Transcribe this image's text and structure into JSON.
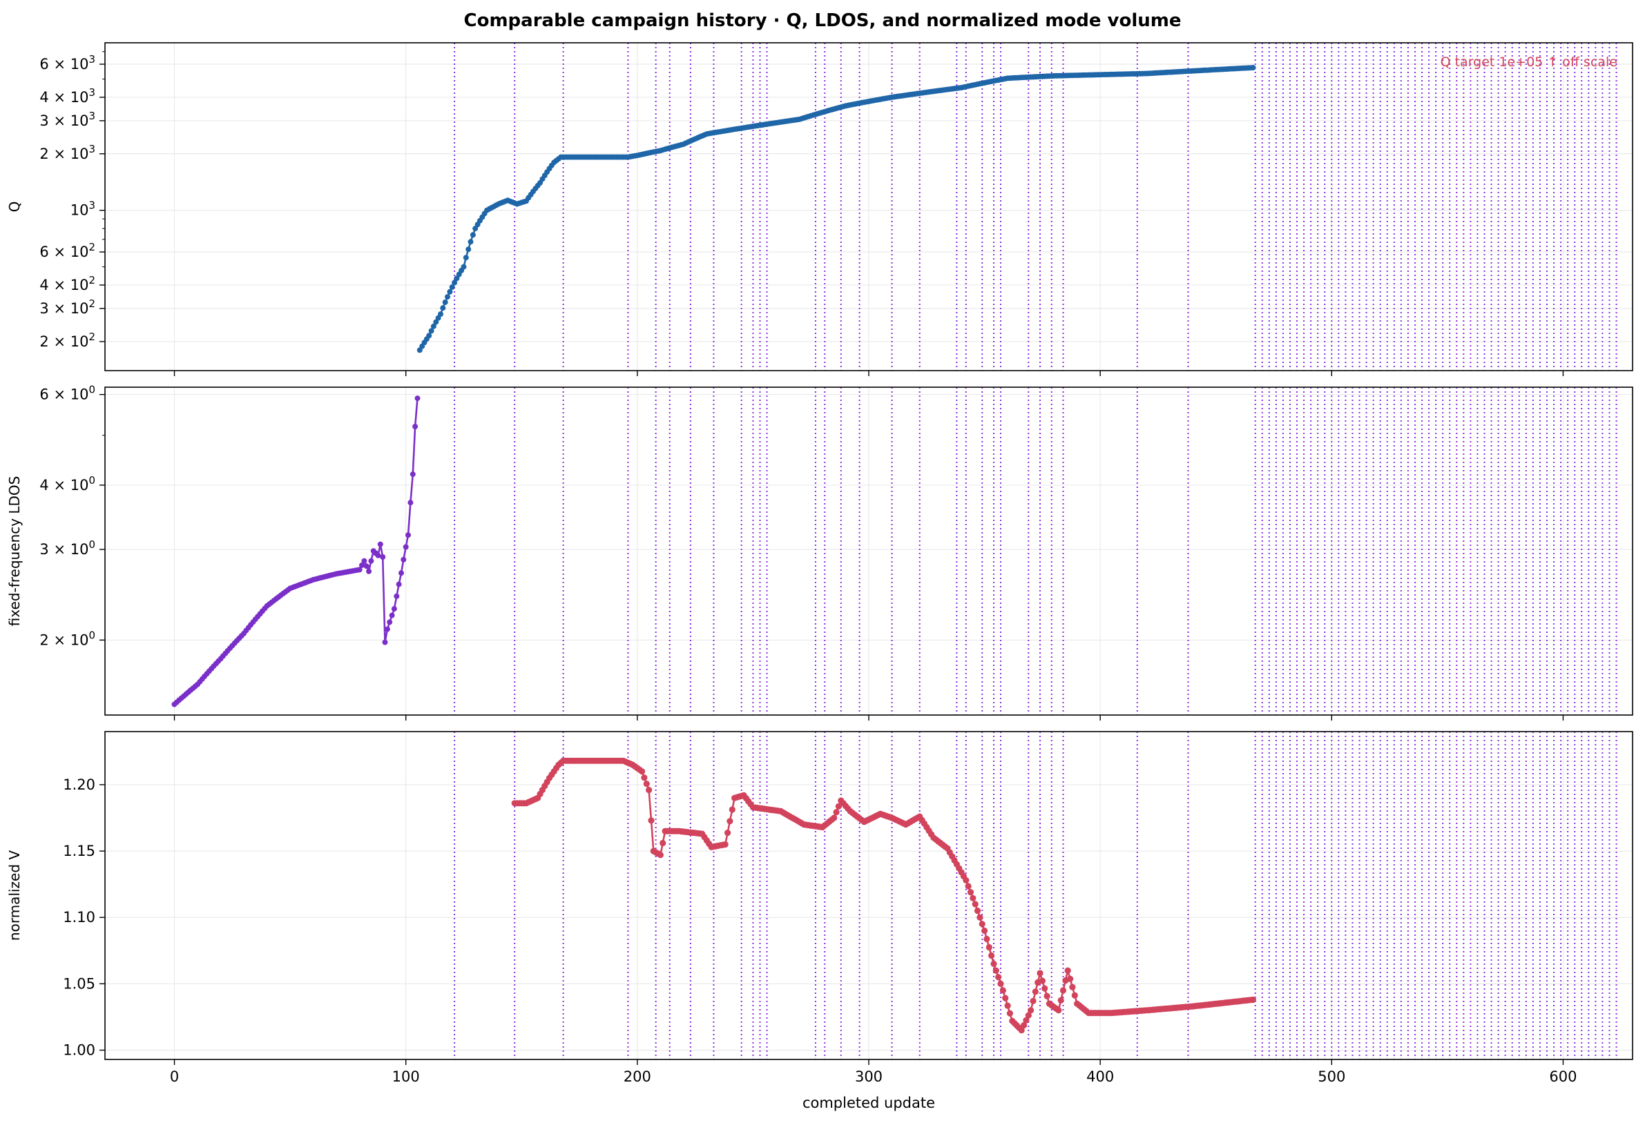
{
  "title": "Comparable campaign history · Q, LDOS, and normalized mode volume",
  "colors": {
    "q": "#1f66a8",
    "ldos": "#7b2fc9",
    "volume": "#d2435c",
    "event": "#8a2be2",
    "annotation": "#d2435c",
    "grid": "#e6e6e6"
  },
  "shared_x": {
    "label": "completed update",
    "range": [
      -30,
      630
    ],
    "ticks": [
      0,
      100,
      200,
      300,
      400,
      500,
      600
    ],
    "tick_labels": [
      "0",
      "100",
      "200",
      "300",
      "400",
      "500",
      "600"
    ]
  },
  "event_lines": {
    "x": [
      121,
      147,
      168,
      196,
      208,
      214,
      223,
      233,
      245,
      250,
      253,
      256,
      277,
      281,
      288,
      296,
      310,
      322,
      338,
      342,
      349,
      354,
      357,
      369,
      374,
      379,
      384,
      416,
      438,
      467,
      470,
      473,
      476,
      479,
      482,
      485,
      488,
      491,
      494,
      497,
      500,
      503,
      506,
      509,
      512,
      515,
      518,
      521,
      524,
      527,
      530,
      533,
      536,
      539,
      542,
      545,
      548,
      551,
      554,
      557,
      560,
      563,
      566,
      569,
      572,
      575,
      578,
      581,
      584,
      587,
      590,
      593,
      596,
      599,
      602,
      605,
      608,
      611,
      614,
      617,
      620,
      623
    ]
  },
  "chart_data": [
    {
      "type": "line",
      "ylabel": "Q",
      "yscale": "log",
      "ylim": [
        140,
        7800
      ],
      "yticks": [
        200,
        300,
        400,
        600,
        1000,
        2000,
        3000,
        4000,
        6000
      ],
      "ytick_labels": [
        {
          "base": "2 × 10",
          "exp": "2"
        },
        {
          "base": "3 × 10",
          "exp": "2"
        },
        {
          "base": "4 × 10",
          "exp": "2"
        },
        {
          "base": "6 × 10",
          "exp": "2"
        },
        {
          "base": "10",
          "exp": "3"
        },
        {
          "base": "2 × 10",
          "exp": "3"
        },
        {
          "base": "3 × 10",
          "exp": "3"
        },
        {
          "base": "4 × 10",
          "exp": "3"
        },
        {
          "base": "6 × 10",
          "exp": "3"
        }
      ],
      "annotation": "Q target 1e+05 ↑ off scale",
      "grid": true,
      "series": [
        {
          "x_range": [
            106,
            466
          ],
          "knots": [
            [
              106,
              180
            ],
            [
              110,
              215
            ],
            [
              115,
              280
            ],
            [
              120,
              390
            ],
            [
              125,
              500
            ],
            [
              130,
              800
            ],
            [
              135,
              1000
            ],
            [
              140,
              1080
            ],
            [
              144,
              1130
            ],
            [
              148,
              1080
            ],
            [
              152,
              1120
            ],
            [
              158,
              1400
            ],
            [
              164,
              1800
            ],
            [
              167,
              1920
            ],
            [
              196,
              1920
            ],
            [
              200,
              1960
            ],
            [
              210,
              2080
            ],
            [
              220,
              2250
            ],
            [
              230,
              2550
            ],
            [
              250,
              2800
            ],
            [
              270,
              3050
            ],
            [
              290,
              3600
            ],
            [
              310,
              4000
            ],
            [
              340,
              4500
            ],
            [
              360,
              5050
            ],
            [
              380,
              5200
            ],
            [
              420,
              5350
            ],
            [
              466,
              5750
            ]
          ]
        }
      ]
    },
    {
      "type": "line",
      "ylabel": "fixed-frequency LDOS",
      "yscale": "log",
      "ylim": [
        1.43,
        6.2
      ],
      "yticks": [
        2,
        3,
        4,
        6
      ],
      "ytick_labels": [
        {
          "base": "2 × 10",
          "exp": "0"
        },
        {
          "base": "3 × 10",
          "exp": "0"
        },
        {
          "base": "4 × 10",
          "exp": "0"
        },
        {
          "base": "6 × 10",
          "exp": "0"
        }
      ],
      "grid": true,
      "series": [
        {
          "x_range": [
            0,
            105
          ],
          "knots": [
            [
              0,
              1.5
            ],
            [
              10,
              1.64
            ],
            [
              20,
              1.84
            ],
            [
              30,
              2.06
            ],
            [
              40,
              2.33
            ],
            [
              50,
              2.52
            ],
            [
              60,
              2.62
            ],
            [
              70,
              2.69
            ],
            [
              80,
              2.74
            ],
            [
              82,
              2.85
            ],
            [
              84,
              2.72
            ],
            [
              86,
              2.98
            ],
            [
              88,
              2.92
            ],
            [
              89,
              3.07
            ],
            [
              90,
              2.9
            ],
            [
              91,
              1.98
            ],
            [
              92,
              2.1
            ],
            [
              95,
              2.3
            ],
            [
              98,
              2.7
            ],
            [
              101,
              3.2
            ],
            [
              103,
              4.2
            ],
            [
              104,
              5.2
            ],
            [
              105,
              5.9
            ]
          ]
        }
      ]
    },
    {
      "type": "line",
      "ylabel": "normalized V",
      "yscale": "linear",
      "ylim": [
        0.993,
        1.24
      ],
      "yticks": [
        1.0,
        1.05,
        1.1,
        1.15,
        1.2
      ],
      "ytick_labels": [
        "1.00",
        "1.05",
        "1.10",
        "1.15",
        "1.20"
      ],
      "grid": true,
      "series": [
        {
          "x_range": [
            147,
            466
          ],
          "knots": [
            [
              147,
              1.186
            ],
            [
              152,
              1.186
            ],
            [
              157,
              1.19
            ],
            [
              162,
              1.205
            ],
            [
              166,
              1.215
            ],
            [
              168,
              1.218
            ],
            [
              194,
              1.218
            ],
            [
              198,
              1.215
            ],
            [
              202,
              1.21
            ],
            [
              205,
              1.196
            ],
            [
              207,
              1.15
            ],
            [
              210,
              1.147
            ],
            [
              212,
              1.165
            ],
            [
              218,
              1.165
            ],
            [
              228,
              1.163
            ],
            [
              232,
              1.153
            ],
            [
              238,
              1.155
            ],
            [
              242,
              1.19
            ],
            [
              246,
              1.192
            ],
            [
              250,
              1.183
            ],
            [
              262,
              1.18
            ],
            [
              272,
              1.17
            ],
            [
              280,
              1.168
            ],
            [
              285,
              1.175
            ],
            [
              288,
              1.188
            ],
            [
              292,
              1.18
            ],
            [
              298,
              1.172
            ],
            [
              305,
              1.178
            ],
            [
              310,
              1.175
            ],
            [
              316,
              1.17
            ],
            [
              322,
              1.176
            ],
            [
              328,
              1.16
            ],
            [
              334,
              1.152
            ],
            [
              338,
              1.14
            ],
            [
              342,
              1.128
            ],
            [
              346,
              1.11
            ],
            [
              350,
              1.09
            ],
            [
              354,
              1.065
            ],
            [
              358,
              1.045
            ],
            [
              362,
              1.022
            ],
            [
              366,
              1.015
            ],
            [
              370,
              1.03
            ],
            [
              374,
              1.058
            ],
            [
              378,
              1.035
            ],
            [
              382,
              1.03
            ],
            [
              386,
              1.06
            ],
            [
              390,
              1.035
            ],
            [
              395,
              1.028
            ],
            [
              405,
              1.028
            ],
            [
              420,
              1.03
            ],
            [
              440,
              1.033
            ],
            [
              466,
              1.038
            ]
          ]
        }
      ]
    }
  ]
}
